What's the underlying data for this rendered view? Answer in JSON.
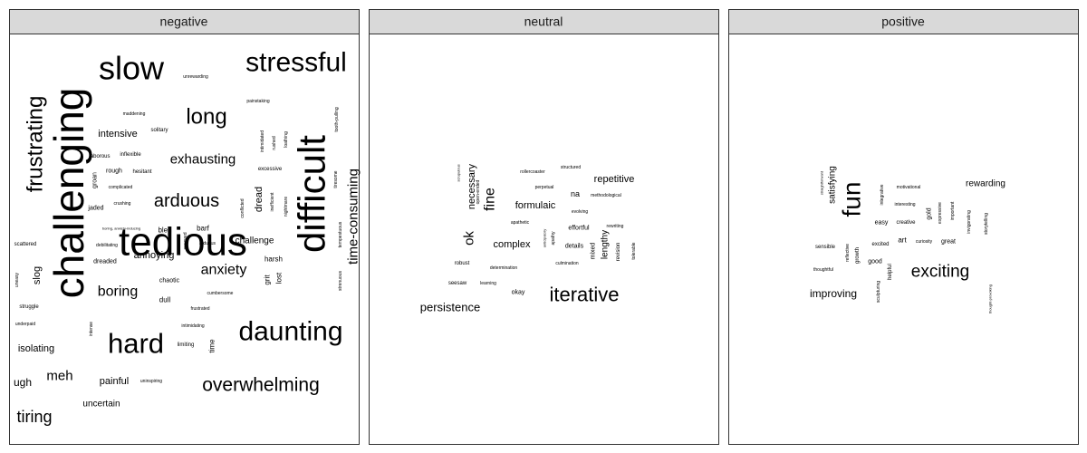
{
  "chart_data": {
    "type": "wordcloud",
    "panels": [
      {
        "label": "negative",
        "words": [
          {
            "text": "challenging",
            "size": 46,
            "rot": -90
          },
          {
            "text": "tedious",
            "size": 44,
            "rot": 0
          },
          {
            "text": "difficult",
            "size": 42,
            "rot": -90
          },
          {
            "text": "slow",
            "size": 36,
            "rot": 0
          },
          {
            "text": "stressful",
            "size": 30,
            "rot": 0
          },
          {
            "text": "hard",
            "size": 31,
            "rot": 0
          },
          {
            "text": "daunting",
            "size": 30,
            "rot": 0
          },
          {
            "text": "frustrating",
            "size": 24,
            "rot": -90
          },
          {
            "text": "long",
            "size": 24,
            "rot": 0
          },
          {
            "text": "overwhelming",
            "size": 21,
            "rot": 0
          },
          {
            "text": "arduous",
            "size": 20,
            "rot": 0
          },
          {
            "text": "time-consuming",
            "size": 15,
            "rot": -90
          },
          {
            "text": "anxiety",
            "size": 16,
            "rot": 0
          },
          {
            "text": "boring",
            "size": 16,
            "rot": 0
          },
          {
            "text": "exhausting",
            "size": 15,
            "rot": 0
          },
          {
            "text": "tiring",
            "size": 18,
            "rot": 0
          },
          {
            "text": "meh",
            "size": 15,
            "rot": 0
          },
          {
            "text": "intensive",
            "size": 11,
            "rot": 0
          },
          {
            "text": "annoying",
            "size": 11,
            "rot": 0
          },
          {
            "text": "challenge",
            "size": 10,
            "rot": 0
          },
          {
            "text": "isolating",
            "size": 11,
            "rot": 0
          },
          {
            "text": "ugh",
            "size": 12,
            "rot": 0
          },
          {
            "text": "painful",
            "size": 11,
            "rot": 0
          },
          {
            "text": "uncertain",
            "size": 10,
            "rot": 0
          },
          {
            "text": "dread",
            "size": 11,
            "rot": -90
          },
          {
            "text": "slog",
            "size": 11,
            "rot": -90
          },
          {
            "text": "dull",
            "size": 8,
            "rot": 0
          },
          {
            "text": "bleh",
            "size": 8,
            "rot": 0
          },
          {
            "text": "barf",
            "size": 8,
            "rot": 0
          },
          {
            "text": "harsh",
            "size": 8,
            "rot": 0
          },
          {
            "text": "grit",
            "size": 8,
            "rot": -90
          },
          {
            "text": "lost",
            "size": 8,
            "rot": -90
          },
          {
            "text": "time",
            "size": 8,
            "rot": -90
          },
          {
            "text": "rough",
            "size": 7,
            "rot": 0
          },
          {
            "text": "groan",
            "size": 7,
            "rot": -90
          },
          {
            "text": "jaded",
            "size": 7,
            "rot": 0
          },
          {
            "text": "chaotic",
            "size": 7,
            "rot": 0
          },
          {
            "text": "dreaded",
            "size": 7,
            "rot": 0
          },
          {
            "text": "solitary",
            "size": 6,
            "rot": 0
          },
          {
            "text": "hesitant",
            "size": 6,
            "rot": 0
          },
          {
            "text": "laborous",
            "size": 6,
            "rot": 0
          },
          {
            "text": "inflexible",
            "size": 6,
            "rot": 0
          },
          {
            "text": "excessive",
            "size": 6,
            "rot": 0
          },
          {
            "text": "limiting",
            "size": 6,
            "rot": 0
          },
          {
            "text": "struggle",
            "size": 6,
            "rot": 0
          },
          {
            "text": "scattered",
            "size": 6,
            "rot": 0
          },
          {
            "text": "frustrated",
            "size": 5,
            "rot": 0
          },
          {
            "text": "cumbersome",
            "size": 5,
            "rot": 0
          },
          {
            "text": "intimidating",
            "size": 5,
            "rot": 0
          },
          {
            "text": "debilitating",
            "size": 5,
            "rot": 0
          },
          {
            "text": "arduous",
            "size": 5,
            "rot": 0
          },
          {
            "text": "underpaid",
            "size": 5,
            "rot": 0
          },
          {
            "text": "uninspiring",
            "size": 5,
            "rot": 0
          },
          {
            "text": "crushing",
            "size": 5,
            "rot": 0
          },
          {
            "text": "complicated",
            "size": 5,
            "rot": 0
          },
          {
            "text": "maddening",
            "size": 5,
            "rot": 0
          },
          {
            "text": "unrewarding",
            "size": 5,
            "rot": 0
          },
          {
            "text": "painstaking",
            "size": 5,
            "rot": 0
          },
          {
            "text": "boring, anxiety-inducing",
            "size": 4,
            "rot": 0
          },
          {
            "text": "uneasy",
            "size": 5,
            "rot": -90
          },
          {
            "text": "intense",
            "size": 5,
            "rot": -90
          },
          {
            "text": "annoyed",
            "size": 5,
            "rot": -90
          },
          {
            "text": "conflicted",
            "size": 5,
            "rot": -90
          },
          {
            "text": "intimidated",
            "size": 5,
            "rot": -90
          },
          {
            "text": "rushed",
            "size": 5,
            "rot": -90
          },
          {
            "text": "loathing",
            "size": 5,
            "rot": -90
          },
          {
            "text": "inefficient",
            "size": 5,
            "rot": -90
          },
          {
            "text": "nightmare",
            "size": 5,
            "rot": -90
          },
          {
            "text": "tooth-pulling",
            "size": 5,
            "rot": -90
          },
          {
            "text": "tiresome",
            "size": 5,
            "rot": -90
          },
          {
            "text": "tempestuous",
            "size": 5,
            "rot": -90
          },
          {
            "text": "strenuous",
            "size": 5,
            "rot": -90
          }
        ]
      },
      {
        "label": "neutral",
        "words": [
          {
            "text": "iterative",
            "size": 22,
            "rot": 0
          },
          {
            "text": "fine",
            "size": 16,
            "rot": -90
          },
          {
            "text": "ok",
            "size": 15,
            "rot": -90
          },
          {
            "text": "persistence",
            "size": 13,
            "rot": 0
          },
          {
            "text": "necessary",
            "size": 11,
            "rot": -90
          },
          {
            "text": "repetitive",
            "size": 11,
            "rot": 0
          },
          {
            "text": "complex",
            "size": 11,
            "rot": 0
          },
          {
            "text": "formulaic",
            "size": 11,
            "rot": 0
          },
          {
            "text": "lengthy",
            "size": 10,
            "rot": -90
          },
          {
            "text": "na",
            "size": 9,
            "rot": 0
          },
          {
            "text": "details",
            "size": 7,
            "rot": 0
          },
          {
            "text": "effortful",
            "size": 7,
            "rot": 0
          },
          {
            "text": "okay",
            "size": 7,
            "rot": 0
          },
          {
            "text": "mixed",
            "size": 7,
            "rot": -90
          },
          {
            "text": "robust",
            "size": 6,
            "rot": 0
          },
          {
            "text": "seesaw",
            "size": 6,
            "rot": 0
          },
          {
            "text": "learning",
            "size": 5,
            "rot": 0
          },
          {
            "text": "determination",
            "size": 5,
            "rot": 0
          },
          {
            "text": "culmination",
            "size": 5,
            "rot": 0
          },
          {
            "text": "apathetic",
            "size": 5,
            "rot": 0
          },
          {
            "text": "evolving",
            "size": 5,
            "rot": 0
          },
          {
            "text": "perpetual",
            "size": 5,
            "rot": 0
          },
          {
            "text": "structured",
            "size": 5,
            "rot": 0
          },
          {
            "text": "rollercoaster",
            "size": 5,
            "rot": 0
          },
          {
            "text": "methodological",
            "size": 5,
            "rot": 0
          },
          {
            "text": "rewriting",
            "size": 5,
            "rot": 0
          },
          {
            "text": "revision",
            "size": 6,
            "rot": -90
          },
          {
            "text": "tolerable",
            "size": 5,
            "rot": -90
          },
          {
            "text": "apathy",
            "size": 5,
            "rot": -90
          },
          {
            "text": "anticipatory",
            "size": 4,
            "rot": -90
          },
          {
            "text": "open-ended",
            "size": 5,
            "rot": -90
          },
          {
            "text": "scrupulous",
            "size": 4,
            "rot": -90
          }
        ]
      },
      {
        "label": "positive",
        "words": [
          {
            "text": "fun",
            "size": 28,
            "rot": -90
          },
          {
            "text": "exciting",
            "size": 19,
            "rot": 0
          },
          {
            "text": "improving",
            "size": 12,
            "rot": 0
          },
          {
            "text": "satisfying",
            "size": 10,
            "rot": -90
          },
          {
            "text": "rewarding",
            "size": 10,
            "rot": 0
          },
          {
            "text": "art",
            "size": 8,
            "rot": 0
          },
          {
            "text": "good",
            "size": 7,
            "rot": 0
          },
          {
            "text": "easy",
            "size": 7,
            "rot": 0
          },
          {
            "text": "gold",
            "size": 7,
            "rot": -90
          },
          {
            "text": "great",
            "size": 7,
            "rot": 0
          },
          {
            "text": "creative",
            "size": 6,
            "rot": 0
          },
          {
            "text": "excited",
            "size": 6,
            "rot": 0
          },
          {
            "text": "sensible",
            "size": 6,
            "rot": 0
          },
          {
            "text": "growth",
            "size": 6,
            "rot": -90
          },
          {
            "text": "helpful",
            "size": 6,
            "rot": -90
          },
          {
            "text": "curiosity",
            "size": 5,
            "rot": 0
          },
          {
            "text": "interesting",
            "size": 5,
            "rot": 0
          },
          {
            "text": "motivational",
            "size": 5,
            "rot": 0
          },
          {
            "text": "thoughtful",
            "size": 5,
            "rot": 0
          },
          {
            "text": "reflective",
            "size": 5,
            "rot": -90
          },
          {
            "text": "sculpturing",
            "size": 5,
            "rot": -90
          },
          {
            "text": "integrative",
            "size": 5,
            "rot": -90
          },
          {
            "text": "expressive",
            "size": 5,
            "rot": -90
          },
          {
            "text": "important",
            "size": 5,
            "rot": -90
          },
          {
            "text": "invigorating",
            "size": 5,
            "rot": -90
          },
          {
            "text": "storytelling",
            "size": 5,
            "rot": -90
          },
          {
            "text": "straightforward",
            "size": 4,
            "rot": -90
          },
          {
            "text": "thought-provoking",
            "size": 4,
            "rot": -90
          }
        ]
      }
    ]
  }
}
